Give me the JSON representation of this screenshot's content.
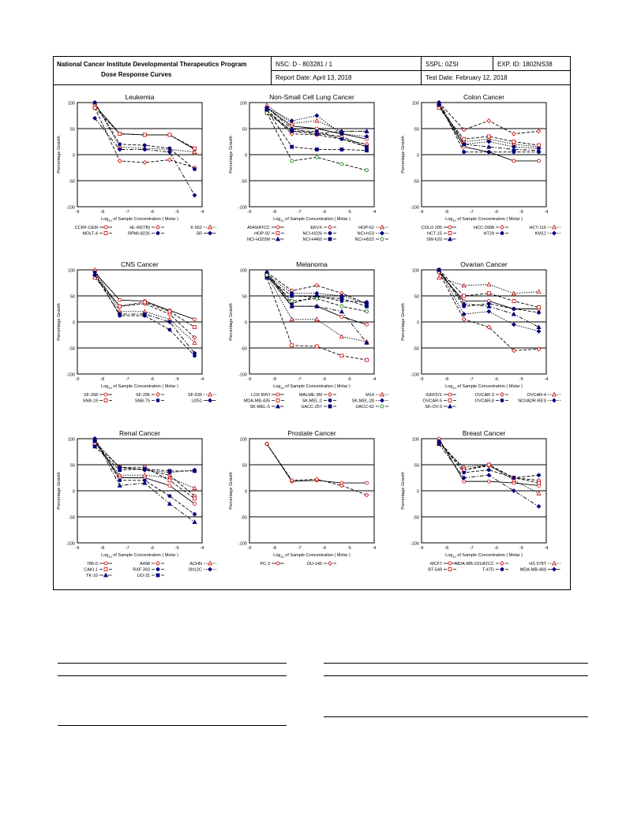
{
  "header": {
    "program": "National Cancer Institute Developmental Therapeutics Program",
    "subtitle": "Dose Response Curves",
    "nsc": "NSC: D - 803281 / 1",
    "sspl": "SSPL: 0ZSI",
    "exp_id": "EXP. ID: 1802NS38",
    "report_date": "Report Date: April 13, 2018",
    "test_date": "Test Date: February 12, 2018"
  },
  "axes": {
    "ylabel": "Percentage Growth",
    "xlabel_prefix": "Log",
    "xlabel_sub": "10",
    "xlabel_suffix": " of Sample Concentration  ( Molar )",
    "x_ticks": [
      "-9",
      "-8",
      "-7",
      "-6",
      "-5",
      "-4"
    ],
    "y_ticks": [
      "100",
      "50",
      "0",
      "-50",
      "-100"
    ],
    "xlim": [
      -9,
      -4
    ],
    "ylim": [
      -100,
      100
    ]
  },
  "chart_data": [
    {
      "type": "line",
      "title": "Leukemia",
      "x": [
        -8.3,
        -7.3,
        -6.3,
        -5.3,
        -4.3
      ],
      "series": [
        {
          "name": "CCRF-CEM",
          "values": [
            95,
            40,
            38,
            38,
            10
          ],
          "color": "#cc0000",
          "marker": "circle",
          "dash": "solid"
        },
        {
          "name": "HL-60(TB)",
          "values": [
            90,
            -12,
            -15,
            -10,
            -25
          ],
          "color": "#cc0000",
          "marker": "diamond",
          "dash": "dashed"
        },
        {
          "name": "K-562",
          "values": [
            100,
            15,
            12,
            10,
            5
          ],
          "color": "#cc0000",
          "marker": "triangle",
          "dash": "dotted"
        },
        {
          "name": "MOLT-4",
          "values": [
            90,
            40,
            38,
            38,
            12
          ],
          "color": "#cc0000",
          "marker": "square",
          "dash": "dashed"
        },
        {
          "name": "RPMI-8226",
          "values": [
            100,
            20,
            18,
            12,
            -28
          ],
          "color": "#000080",
          "marker": "circle",
          "dash": "dashed"
        },
        {
          "name": "SR",
          "values": [
            70,
            10,
            10,
            5,
            -78
          ],
          "color": "#000080",
          "marker": "diamond",
          "dash": "dashdot"
        }
      ],
      "legend": [
        "CCRF-CEM",
        "HL-60(TB)",
        "K-562",
        "MOLT-4",
        "RPMI-8226",
        "SR"
      ]
    },
    {
      "type": "line",
      "title": "Non-Small Cell Lung Cancer",
      "x": [
        -8.3,
        -7.3,
        -6.3,
        -5.3,
        -4.3
      ],
      "series": [
        {
          "name": "A549/ATCC",
          "values": [
            90,
            55,
            50,
            40,
            30
          ],
          "color": "#cc0000",
          "marker": "circle",
          "dash": "solid"
        },
        {
          "name": "EKVX",
          "values": [
            85,
            40,
            38,
            30,
            20
          ],
          "color": "#cc0000",
          "marker": "diamond",
          "dash": "dashed"
        },
        {
          "name": "HOP-62",
          "values": [
            95,
            60,
            65,
            45,
            45
          ],
          "color": "#cc0000",
          "marker": "triangle",
          "dash": "dotted"
        },
        {
          "name": "HOP-92",
          "values": [
            80,
            45,
            40,
            35,
            15
          ],
          "color": "#cc0000",
          "marker": "square",
          "dash": "dashed"
        },
        {
          "name": "NCI-H226",
          "values": [
            85,
            45,
            45,
            30,
            15
          ],
          "color": "#000080",
          "marker": "circle",
          "dash": "dashed"
        },
        {
          "name": "NCI-H23",
          "values": [
            90,
            65,
            75,
            40,
            35
          ],
          "color": "#000080",
          "marker": "diamond",
          "dash": "dotted"
        },
        {
          "name": "NCI-H322M",
          "values": [
            90,
            50,
            40,
            45,
            45
          ],
          "color": "#000080",
          "marker": "triangle",
          "dash": "dashdot"
        },
        {
          "name": "NCI-H460",
          "values": [
            85,
            15,
            10,
            10,
            8
          ],
          "color": "#000080",
          "marker": "square",
          "dash": "dashed"
        },
        {
          "name": "NCI-H522",
          "values": [
            80,
            -12,
            -5,
            -18,
            -30
          ],
          "color": "#008000",
          "marker": "circle",
          "dash": "dashed"
        }
      ],
      "legend": [
        "A549/ATCC",
        "EKVX",
        "HOP-62",
        "HOP-92",
        "NCI-H226",
        "NCI-H23",
        "NCI-H322M",
        "NCI-H460",
        "NCI-H522"
      ]
    },
    {
      "type": "line",
      "title": "Colon Cancer",
      "x": [
        -8.3,
        -7.3,
        -6.3,
        -5.3,
        -4.3
      ],
      "series": [
        {
          "name": "COLO 205",
          "values": [
            95,
            15,
            5,
            -12,
            -12
          ],
          "color": "#cc0000",
          "marker": "circle",
          "dash": "solid"
        },
        {
          "name": "HCC-2998",
          "values": [
            100,
            48,
            65,
            40,
            45
          ],
          "color": "#cc0000",
          "marker": "diamond",
          "dash": "dashed"
        },
        {
          "name": "HCT-116",
          "values": [
            95,
            25,
            30,
            20,
            15
          ],
          "color": "#cc0000",
          "marker": "triangle",
          "dash": "dotted"
        },
        {
          "name": "HCT-15",
          "values": [
            90,
            30,
            35,
            25,
            18
          ],
          "color": "#cc0000",
          "marker": "square",
          "dash": "dashed"
        },
        {
          "name": "HT29",
          "values": [
            100,
            5,
            5,
            5,
            5
          ],
          "color": "#000080",
          "marker": "circle",
          "dash": "dashed"
        },
        {
          "name": "KM12",
          "values": [
            95,
            20,
            25,
            15,
            12
          ],
          "color": "#000080",
          "marker": "diamond",
          "dash": "dotted"
        },
        {
          "name": "SW-620",
          "values": [
            100,
            20,
            15,
            10,
            8
          ],
          "color": "#000080",
          "marker": "triangle",
          "dash": "dashdot"
        }
      ],
      "legend": [
        "COLO 205",
        "HCC-2998",
        "HCT-116",
        "HCT-15",
        "HT29",
        "KM12",
        "SW-620"
      ]
    },
    {
      "type": "line",
      "title": "CNS Cancer",
      "x": [
        -8.3,
        -7.3,
        -6.3,
        -5.3,
        -4.3
      ],
      "series": [
        {
          "name": "SF-268",
          "values": [
            95,
            42,
            40,
            22,
            5
          ],
          "color": "#cc0000",
          "marker": "circle",
          "dash": "solid"
        },
        {
          "name": "SF-295",
          "values": [
            90,
            30,
            35,
            15,
            -30
          ],
          "color": "#cc0000",
          "marker": "diamond",
          "dash": "dashed"
        },
        {
          "name": "SF-539",
          "values": [
            100,
            20,
            20,
            5,
            -40
          ],
          "color": "#cc0000",
          "marker": "triangle",
          "dash": "dotted"
        },
        {
          "name": "SNB-19",
          "values": [
            85,
            30,
            38,
            20,
            -10
          ],
          "color": "#cc0000",
          "marker": "square",
          "dash": "dashed"
        },
        {
          "name": "SNB-75",
          "values": [
            95,
            12,
            12,
            -15,
            -65
          ],
          "color": "#000080",
          "marker": "circle",
          "dash": "dashed"
        },
        {
          "name": "U251",
          "values": [
            90,
            15,
            15,
            0,
            -60
          ],
          "color": "#000080",
          "marker": "diamond",
          "dash": "dashdot"
        }
      ],
      "legend": [
        "SF-268",
        "SF-295",
        "SF-539",
        "SNB-19",
        "SNB-75",
        "U251"
      ]
    },
    {
      "type": "line",
      "title": "Melanoma",
      "x": [
        -8.3,
        -7.3,
        -6.3,
        -5.3,
        -4.3
      ],
      "series": [
        {
          "name": "LOX IMVI",
          "values": [
            90,
            30,
            30,
            10,
            -5
          ],
          "color": "#cc0000",
          "marker": "circle",
          "dash": "solid"
        },
        {
          "name": "MALME-3M",
          "values": [
            95,
            60,
            70,
            55,
            35
          ],
          "color": "#cc0000",
          "marker": "diamond",
          "dash": "dashed"
        },
        {
          "name": "M14",
          "values": [
            90,
            5,
            5,
            -28,
            -38
          ],
          "color": "#cc0000",
          "marker": "triangle",
          "dash": "dotted"
        },
        {
          "name": "MDA-MB-435",
          "values": [
            85,
            -45,
            -47,
            -65,
            -73
          ],
          "color": "#cc0000",
          "marker": "square",
          "dash": "dashed"
        },
        {
          "name": "SK-MEL-2",
          "values": [
            95,
            35,
            50,
            40,
            38
          ],
          "color": "#000080",
          "marker": "circle",
          "dash": "dashed"
        },
        {
          "name": "SK-MEL-28",
          "values": [
            90,
            55,
            55,
            50,
            35
          ],
          "color": "#000080",
          "marker": "diamond",
          "dash": "dotted"
        },
        {
          "name": "SK-MEL-5",
          "values": [
            95,
            30,
            30,
            20,
            -40
          ],
          "color": "#000080",
          "marker": "triangle",
          "dash": "dashdot"
        },
        {
          "name": "UACC-257",
          "values": [
            85,
            50,
            48,
            45,
            30
          ],
          "color": "#000080",
          "marker": "square",
          "dash": "dashed"
        },
        {
          "name": "UACC-62",
          "values": [
            90,
            40,
            45,
            30,
            20
          ],
          "color": "#008000",
          "marker": "circle",
          "dash": "dashed"
        }
      ],
      "legend": [
        "LOX IMVI",
        "MALME-3M",
        "M14",
        "MDA-MB-435",
        "SK-MEL-2",
        "SK-MEL-28",
        "SK-MEL-5",
        "UACC-257",
        "UACC-62"
      ]
    },
    {
      "type": "line",
      "title": "Ovarian Cancer",
      "x": [
        -8.3,
        -7.3,
        -6.3,
        -5.3,
        -4.3
      ],
      "series": [
        {
          "name": "IGROV1",
          "values": [
            95,
            40,
            40,
            25,
            25
          ],
          "color": "#cc0000",
          "marker": "circle",
          "dash": "solid"
        },
        {
          "name": "OVCAR-3",
          "values": [
            95,
            5,
            -10,
            -55,
            -52
          ],
          "color": "#cc0000",
          "marker": "diamond",
          "dash": "dashed"
        },
        {
          "name": "OVCAR-4",
          "values": [
            85,
            70,
            72,
            55,
            58
          ],
          "color": "#cc0000",
          "marker": "triangle",
          "dash": "dotted"
        },
        {
          "name": "OVCAR-5",
          "values": [
            100,
            50,
            55,
            40,
            28
          ],
          "color": "#cc0000",
          "marker": "square",
          "dash": "dashed"
        },
        {
          "name": "OVCAR-8",
          "values": [
            100,
            30,
            35,
            25,
            18
          ],
          "color": "#000080",
          "marker": "circle",
          "dash": "dashed"
        },
        {
          "name": "NCI/ADR-RES",
          "values": [
            100,
            15,
            20,
            -5,
            -18
          ],
          "color": "#000080",
          "marker": "diamond",
          "dash": "dotted"
        },
        {
          "name": "SK-OV-3",
          "values": [
            100,
            35,
            30,
            15,
            -10
          ],
          "color": "#000080",
          "marker": "triangle",
          "dash": "dashdot"
        }
      ],
      "legend": [
        "IGROV1",
        "OVCAR-3",
        "OVCAR-4",
        "OVCAR-5",
        "OVCAR-8",
        "NCI/ADR-RES",
        "SK-OV-3"
      ]
    },
    {
      "type": "line",
      "title": "Renal Cancer",
      "x": [
        -8.3,
        -7.3,
        -6.3,
        -5.3,
        -4.3
      ],
      "series": [
        {
          "name": "786-0",
          "values": [
            95,
            25,
            25,
            10,
            -25
          ],
          "color": "#cc0000",
          "marker": "circle",
          "dash": "solid"
        },
        {
          "name": "A498",
          "values": [
            90,
            45,
            40,
            30,
            -10
          ],
          "color": "#cc0000",
          "marker": "diamond",
          "dash": "dashed"
        },
        {
          "name": "ACHN",
          "values": [
            95,
            30,
            30,
            25,
            5
          ],
          "color": "#cc0000",
          "marker": "triangle",
          "dash": "dotted"
        },
        {
          "name": "CAKI-1",
          "values": [
            90,
            45,
            45,
            20,
            -15
          ],
          "color": "#cc0000",
          "marker": "square",
          "dash": "dashed"
        },
        {
          "name": "RXF 393",
          "values": [
            100,
            20,
            20,
            -10,
            -45
          ],
          "color": "#000080",
          "marker": "circle",
          "dash": "dashed"
        },
        {
          "name": "SN12C",
          "values": [
            95,
            45,
            40,
            35,
            40
          ],
          "color": "#000080",
          "marker": "diamond",
          "dash": "dotted"
        },
        {
          "name": "TK-10",
          "values": [
            100,
            10,
            15,
            -25,
            -60
          ],
          "color": "#000080",
          "marker": "triangle",
          "dash": "dashdot"
        },
        {
          "name": "UO-31",
          "values": [
            85,
            40,
            42,
            38,
            38
          ],
          "color": "#000080",
          "marker": "square",
          "dash": "dashed"
        }
      ],
      "legend": [
        "786-0",
        "A498",
        "ACHN",
        "CAKI-1",
        "RXF 393",
        "SN12C",
        "TK-10",
        "UO-31"
      ]
    },
    {
      "type": "line",
      "title": "Prostate Cancer",
      "x": [
        -8.3,
        -7.3,
        -6.3,
        -5.3,
        -4.3
      ],
      "series": [
        {
          "name": "PC-3",
          "values": [
            90,
            18,
            20,
            15,
            15
          ],
          "color": "#cc0000",
          "marker": "circle",
          "dash": "solid"
        },
        {
          "name": "DU-145",
          "values": [
            90,
            20,
            22,
            10,
            -8
          ],
          "color": "#cc0000",
          "marker": "diamond",
          "dash": "dashed"
        }
      ],
      "legend": [
        "PC-3",
        "DU-145"
      ]
    },
    {
      "type": "line",
      "title": "Breast Cancer",
      "x": [
        -8.3,
        -7.3,
        -6.3,
        -5.3,
        -4.3
      ],
      "series": [
        {
          "name": "MCF7",
          "values": [
            100,
            18,
            18,
            15,
            10
          ],
          "color": "#cc0000",
          "marker": "circle",
          "dash": "solid"
        },
        {
          "name": "MDA-MB-231/ATCC",
          "values": [
            95,
            40,
            48,
            25,
            20
          ],
          "color": "#cc0000",
          "marker": "diamond",
          "dash": "dashed"
        },
        {
          "name": "HS 578T",
          "values": [
            90,
            45,
            50,
            20,
            -5
          ],
          "color": "#cc0000",
          "marker": "triangle",
          "dash": "dotted"
        },
        {
          "name": "BT-549",
          "values": [
            95,
            40,
            50,
            25,
            15
          ],
          "color": "#cc0000",
          "marker": "square",
          "dash": "dashed"
        },
        {
          "name": "T-47D",
          "values": [
            95,
            35,
            40,
            25,
            30
          ],
          "color": "#000080",
          "marker": "circle",
          "dash": "dashed"
        },
        {
          "name": "MDA-MB-468",
          "values": [
            90,
            25,
            30,
            0,
            -30
          ],
          "color": "#000080",
          "marker": "diamond",
          "dash": "dashdot"
        }
      ],
      "legend": [
        "MCF7",
        "MDA-MB-231/ATCC",
        "HS 578T",
        "BT-549",
        "T-47D",
        "MDA-MB-468"
      ]
    }
  ]
}
